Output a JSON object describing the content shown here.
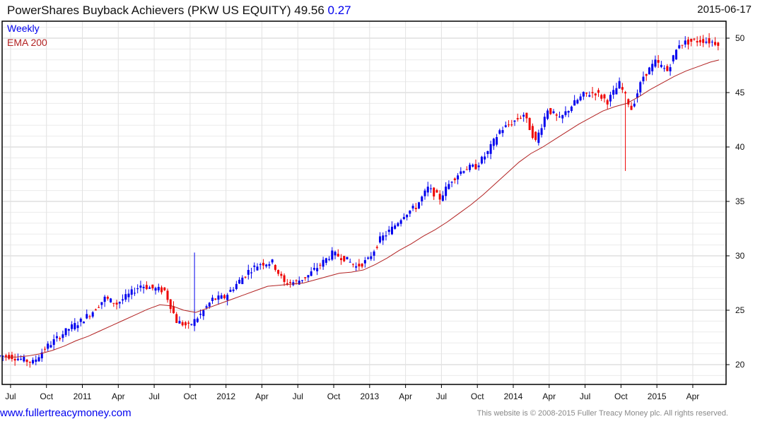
{
  "header": {
    "title": "PowerShares Buyback Achievers (PKW US EQUITY) 49.56",
    "change": "0.27",
    "date": "2015-06-17"
  },
  "legend": {
    "series": "Weekly",
    "ema": "EMA 200"
  },
  "footer": {
    "link": "www.fullertreacymoney.com",
    "copyright": "This website is © 2008-2015 Fuller Treacy Money plc. All rights reserved."
  },
  "colors": {
    "up": "#0000ee",
    "down": "#ee0000",
    "ema": "#b22222",
    "grid": "#dddddd"
  },
  "chart_data": {
    "type": "ohlc-bar",
    "title": "PowerShares Buyback Achievers (PKW US EQUITY)",
    "frequency": "weekly",
    "ylim": [
      18.5,
      51.5
    ],
    "yticks": [
      20,
      25,
      30,
      35,
      40,
      45,
      50
    ],
    "xticks": [
      "Jul",
      "Oct",
      "2011",
      "Apr",
      "Jul",
      "Oct",
      "2012",
      "Apr",
      "Jul",
      "Oct",
      "2013",
      "Apr",
      "Jul",
      "Oct",
      "2014",
      "Apr",
      "Jul",
      "Oct",
      "2015",
      "Apr"
    ],
    "months": [
      "2010-06",
      "2010-07",
      "2010-08",
      "2010-09",
      "2010-10",
      "2010-11",
      "2010-12",
      "2011-01",
      "2011-02",
      "2011-03",
      "2011-04",
      "2011-05",
      "2011-06",
      "2011-07",
      "2011-08",
      "2011-09",
      "2011-10",
      "2011-11",
      "2011-12",
      "2012-01",
      "2012-02",
      "2012-03",
      "2012-04",
      "2012-05",
      "2012-06",
      "2012-07",
      "2012-08",
      "2012-09",
      "2012-10",
      "2012-11",
      "2012-12",
      "2013-01",
      "2013-02",
      "2013-03",
      "2013-04",
      "2013-05",
      "2013-06",
      "2013-07",
      "2013-08",
      "2013-09",
      "2013-10",
      "2013-11",
      "2013-12",
      "2014-01",
      "2014-02",
      "2014-03",
      "2014-04",
      "2014-05",
      "2014-06",
      "2014-07",
      "2014-08",
      "2014-09",
      "2014-10",
      "2014-11",
      "2014-12",
      "2015-01",
      "2015-02",
      "2015-03",
      "2015-04",
      "2015-05",
      "2015-06"
    ],
    "monthly_close": [
      20.8,
      20.5,
      20.2,
      21.5,
      22.4,
      23.3,
      24.0,
      24.9,
      26.1,
      25.6,
      26.4,
      27.3,
      27.0,
      26.8,
      24.0,
      23.5,
      24.6,
      26.0,
      26.2,
      27.4,
      28.6,
      29.3,
      29.4,
      27.5,
      27.6,
      28.2,
      29.2,
      30.2,
      29.8,
      29.0,
      29.6,
      31.5,
      32.5,
      33.8,
      34.5,
      36.2,
      35.3,
      37.0,
      38.0,
      38.2,
      39.5,
      41.5,
      42.2,
      43.0,
      40.5,
      43.5,
      42.5,
      43.8,
      44.8,
      45.0,
      44.2,
      45.8,
      43.5,
      46.5,
      47.8,
      47.0,
      49.5,
      49.7,
      49.8,
      49.6,
      49.56
    ],
    "ema200": [
      20.7,
      20.7,
      20.8,
      21.0,
      21.3,
      21.7,
      22.2,
      22.6,
      23.1,
      23.6,
      24.1,
      24.6,
      25.1,
      25.5,
      25.4,
      25.0,
      24.8,
      25.2,
      25.6,
      26.0,
      26.4,
      26.8,
      27.2,
      27.3,
      27.4,
      27.5,
      27.8,
      28.1,
      28.4,
      28.5,
      28.7,
      29.2,
      29.8,
      30.5,
      31.1,
      31.8,
      32.4,
      33.1,
      33.9,
      34.7,
      35.6,
      36.6,
      37.6,
      38.6,
      39.4,
      40.0,
      40.7,
      41.4,
      42.1,
      42.7,
      43.3,
      43.7,
      44.0,
      44.6,
      45.3,
      45.9,
      46.5,
      47.0,
      47.4,
      47.8,
      48.0
    ],
    "annotations": [
      {
        "month": "2014-10",
        "low": 37.8
      },
      {
        "month": "2011-10",
        "high": 30.3
      }
    ]
  }
}
